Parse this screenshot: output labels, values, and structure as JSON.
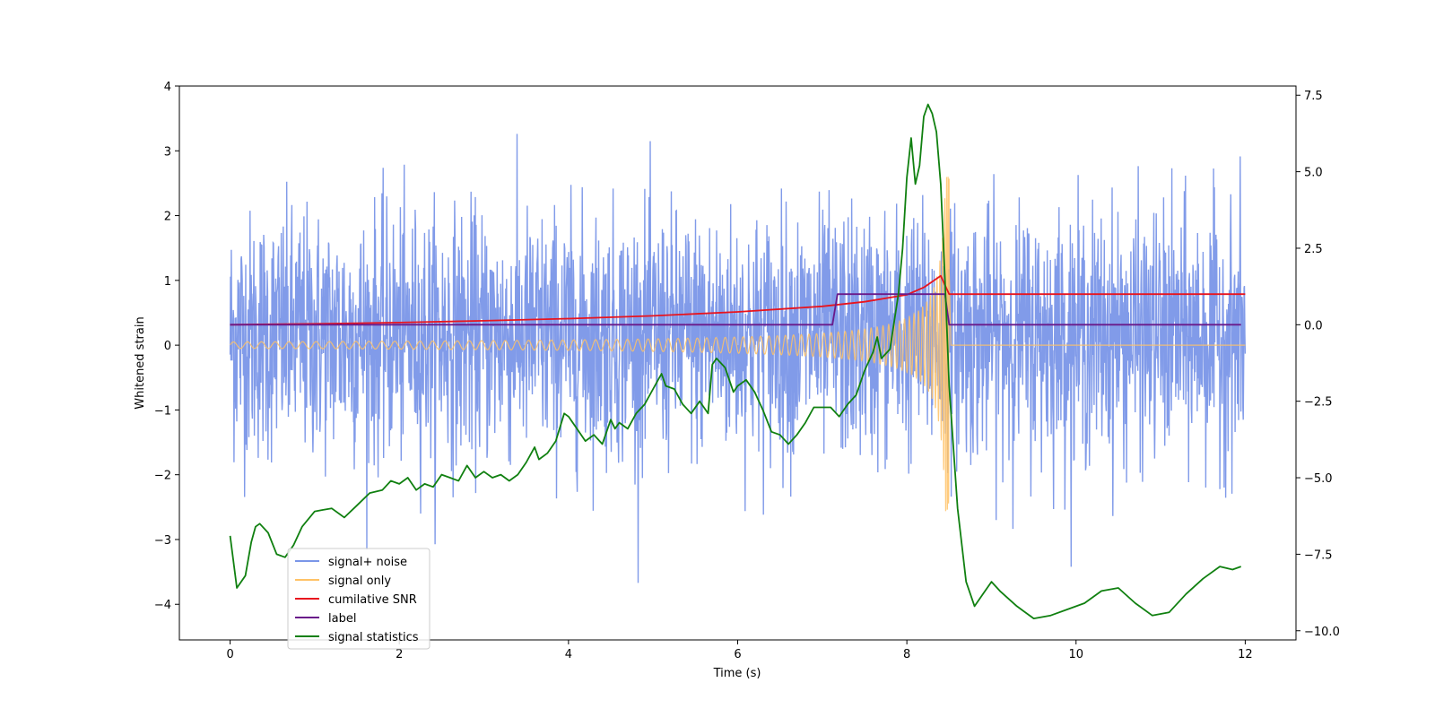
{
  "chart_data": {
    "type": "line",
    "title": "",
    "xlabel": "Time (s)",
    "ylabel": "Whitened strain",
    "y2label": "",
    "xlim": [
      -0.6,
      12.6
    ],
    "ylim": [
      -4.55,
      4.0
    ],
    "y2lim": [
      -10.3,
      7.8
    ],
    "x_ticks": [
      0,
      2,
      4,
      6,
      8,
      10,
      12
    ],
    "y_ticks": [
      4,
      3,
      2,
      1,
      0,
      -1,
      -2,
      -3,
      -4
    ],
    "y2_ticks": [
      7.5,
      5.0,
      2.5,
      0.0,
      -2.5,
      -5.0,
      -7.5,
      -10.0
    ],
    "legend_position": "lower-left",
    "grid": false,
    "series": [
      {
        "name": "signal+ noise",
        "axis": "left",
        "color": "#7a96e8",
        "kind": "noise",
        "x_range": [
          0,
          12
        ],
        "typical_band": [
          -1.5,
          1.8
        ],
        "extremes": [
          -4.15,
          3.6
        ]
      },
      {
        "name": "signal only",
        "axis": "left",
        "color": "#ffc266",
        "kind": "chirp",
        "x_range": [
          0,
          8.5
        ],
        "peak_amplitude": 2.6,
        "after_merger_value": 0
      },
      {
        "name": "cumilative SNR",
        "axis": "right",
        "color": "#e8141e",
        "x": [
          0,
          1,
          2,
          3,
          4,
          5,
          6,
          7,
          7.5,
          8,
          8.2,
          8.4,
          8.5,
          12
        ],
        "values": [
          0,
          0.03,
          0.07,
          0.13,
          0.2,
          0.29,
          0.42,
          0.6,
          0.75,
          0.98,
          1.22,
          1.6,
          1.0,
          1.0
        ]
      },
      {
        "name": "label",
        "axis": "right",
        "color": "#6a1a8a",
        "x": [
          0,
          7.12,
          7.18,
          8.45,
          8.5,
          11.95
        ],
        "values": [
          0,
          0,
          1,
          1,
          0,
          0
        ]
      },
      {
        "name": "signal statistics",
        "axis": "right",
        "color": "#108010",
        "x": [
          0,
          0.08,
          0.18,
          0.25,
          0.3,
          0.35,
          0.45,
          0.55,
          0.65,
          0.75,
          0.85,
          1.0,
          1.1,
          1.2,
          1.35,
          1.5,
          1.65,
          1.8,
          1.9,
          2.0,
          2.1,
          2.2,
          2.3,
          2.4,
          2.5,
          2.6,
          2.7,
          2.8,
          2.9,
          3.0,
          3.1,
          3.2,
          3.3,
          3.4,
          3.5,
          3.6,
          3.65,
          3.75,
          3.85,
          3.95,
          4.0,
          4.1,
          4.2,
          4.3,
          4.4,
          4.5,
          4.55,
          4.6,
          4.7,
          4.8,
          4.9,
          5.0,
          5.1,
          5.15,
          5.25,
          5.35,
          5.45,
          5.55,
          5.65,
          5.7,
          5.75,
          5.85,
          5.95,
          6.0,
          6.1,
          6.2,
          6.3,
          6.4,
          6.5,
          6.6,
          6.7,
          6.8,
          6.9,
          7.0,
          7.1,
          7.2,
          7.3,
          7.4,
          7.5,
          7.6,
          7.65,
          7.7,
          7.8,
          7.9,
          7.95,
          8.0,
          8.05,
          8.1,
          8.15,
          8.2,
          8.25,
          8.3,
          8.35,
          8.4,
          8.45,
          8.5,
          8.6,
          8.7,
          8.8,
          8.9,
          9.0,
          9.1,
          9.3,
          9.5,
          9.7,
          9.9,
          10.1,
          10.3,
          10.5,
          10.7,
          10.9,
          11.1,
          11.3,
          11.5,
          11.7,
          11.85,
          11.95
        ],
        "values": [
          -6.9,
          -8.6,
          -8.2,
          -7.1,
          -6.6,
          -6.5,
          -6.8,
          -7.5,
          -7.6,
          -7.2,
          -6.6,
          -6.1,
          -6.05,
          -6.0,
          -6.3,
          -5.9,
          -5.5,
          -5.4,
          -5.1,
          -5.2,
          -5.0,
          -5.4,
          -5.2,
          -5.3,
          -4.9,
          -5.0,
          -5.1,
          -4.6,
          -5.0,
          -4.8,
          -5.0,
          -4.9,
          -5.1,
          -4.9,
          -4.5,
          -4.0,
          -4.4,
          -4.2,
          -3.8,
          -2.9,
          -3.0,
          -3.4,
          -3.8,
          -3.6,
          -3.9,
          -3.1,
          -3.4,
          -3.2,
          -3.4,
          -2.9,
          -2.6,
          -2.1,
          -1.6,
          -2.0,
          -2.1,
          -2.6,
          -2.9,
          -2.5,
          -2.9,
          -1.3,
          -1.1,
          -1.4,
          -2.2,
          -2.0,
          -1.8,
          -2.2,
          -2.8,
          -3.5,
          -3.6,
          -3.9,
          -3.6,
          -3.2,
          -2.7,
          -2.7,
          -2.7,
          -3.0,
          -2.6,
          -2.3,
          -1.5,
          -0.9,
          -0.4,
          -1.1,
          -0.8,
          1.0,
          2.5,
          4.8,
          6.1,
          4.6,
          5.2,
          6.8,
          7.2,
          6.9,
          6.3,
          4.6,
          1.5,
          -2.0,
          -6.0,
          -8.4,
          -9.2,
          -8.8,
          -8.4,
          -8.7,
          -9.2,
          -9.6,
          -9.5,
          -9.3,
          -9.1,
          -8.7,
          -8.6,
          -9.1,
          -9.5,
          -9.4,
          -8.8,
          -8.3,
          -7.9,
          -8.0,
          -7.9
        ]
      }
    ]
  }
}
